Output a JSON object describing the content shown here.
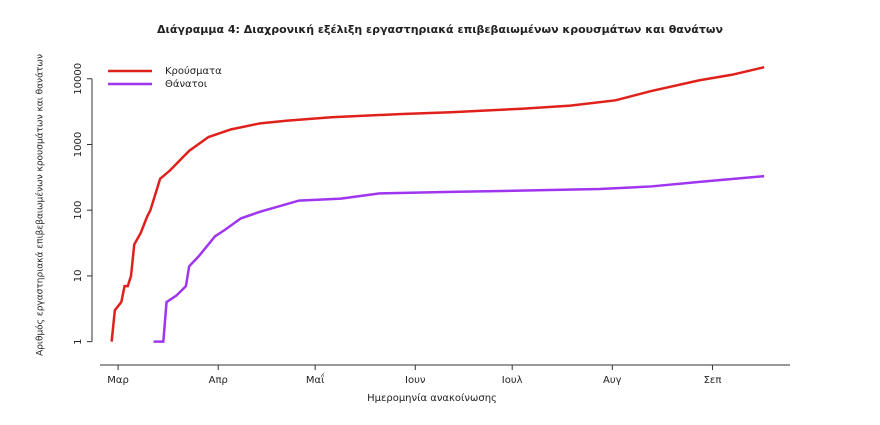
{
  "chart_data": {
    "type": "line",
    "title": "Διάγραμμα 4: Διαχρονική εξέλιξη εργαστηριακά επιβεβαιωμένων κρουσμάτων και θανάτων",
    "x_label": "Ημερομηνία ανακοίνωσης",
    "y_label": "Αριθμός εργαστηριακά επιβεβαιωμένων κρουσμάτων και θανάτων",
    "log_y": true,
    "legend": "top-left",
    "xlim": [
      -5.6,
      208
    ],
    "xticks": [
      {
        "value": 0,
        "label": "Μαρ"
      },
      {
        "value": 31,
        "label": "Απρ"
      },
      {
        "value": 61,
        "label": "Μαΐ"
      },
      {
        "value": 92,
        "label": "Ιουν"
      },
      {
        "value": 122,
        "label": "Ιουλ"
      },
      {
        "value": 153,
        "label": "Αυγ"
      },
      {
        "value": 184,
        "label": "Σεπ"
      }
    ],
    "ylim": [
      0.8,
      20000
    ],
    "yticks": [
      1,
      10,
      100,
      1000,
      10000
    ],
    "series": [
      {
        "name": "Κρούσματα",
        "color": "#e0201b",
        "x": [
          -2,
          -1,
          1,
          2,
          3,
          4,
          5,
          7,
          9,
          10,
          13,
          16,
          22,
          28,
          35,
          44,
          52,
          66,
          87,
          103,
          125,
          140,
          154,
          165,
          180,
          190,
          200
        ],
        "values": [
          1,
          3,
          4,
          7,
          7,
          10,
          30,
          45,
          80,
          100,
          300,
          400,
          800,
          1300,
          1700,
          2100,
          2300,
          2600,
          2900,
          3100,
          3500,
          3900,
          4700,
          6500,
          9500,
          11500,
          15000
        ]
      },
      {
        "name": "Θάνατοι",
        "color": "#a035f0",
        "x": [
          11,
          14,
          15,
          18,
          21,
          22,
          25,
          30,
          33,
          38,
          44,
          56,
          69,
          81,
          103,
          128,
          149,
          165,
          180,
          200
        ],
        "values": [
          1,
          1,
          4,
          5,
          7,
          14,
          20,
          40,
          50,
          75,
          95,
          140,
          150,
          180,
          190,
          200,
          210,
          230,
          270,
          330
        ]
      }
    ]
  }
}
